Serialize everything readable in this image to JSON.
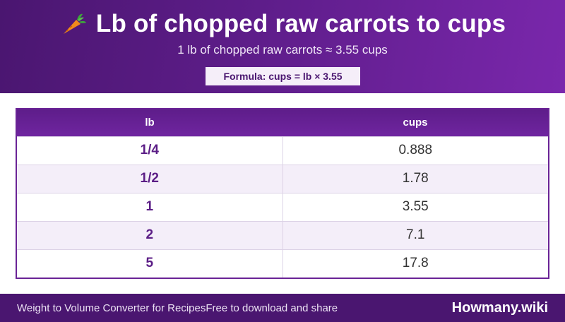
{
  "header": {
    "title": "Lb of chopped raw carrots to cups",
    "title_icon": "carrot-icon",
    "subtitle": "1 lb of chopped raw carrots ≈ 3.55 cups",
    "formula": "Formula: cups = lb × 3.55"
  },
  "table": {
    "columns": [
      "lb",
      "cups"
    ],
    "rows": [
      {
        "lb": "1/4",
        "cups": "0.888"
      },
      {
        "lb": "1/2",
        "cups": "1.78"
      },
      {
        "lb": "1",
        "cups": "3.55"
      },
      {
        "lb": "2",
        "cups": "7.1"
      },
      {
        "lb": "5",
        "cups": "17.8"
      }
    ]
  },
  "footer": {
    "left_text": "Weight to Volume Converter for RecipesFree to download and share",
    "brand": "Howmany.wiki"
  },
  "colors": {
    "header_bg": "#5e1d8a",
    "accent": "#6a2396",
    "row_alt": "#f4eef9",
    "footer_bg": "#4a1670"
  }
}
